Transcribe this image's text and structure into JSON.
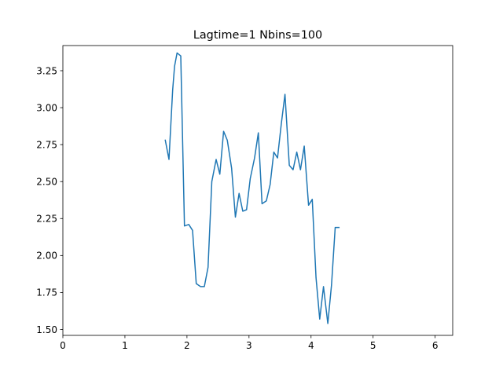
{
  "chart_data": {
    "type": "line",
    "title": "Lagtime=1 Nbins=100",
    "xlabel": "",
    "ylabel": "",
    "xlim": [
      0,
      6.2832
    ],
    "ylim": [
      1.46,
      3.42
    ],
    "x_ticks": [
      0,
      1,
      2,
      3,
      4,
      5,
      6
    ],
    "x_tick_labels": [
      "0",
      "1",
      "2",
      "3",
      "4",
      "5",
      "6"
    ],
    "y_ticks": [
      1.5,
      1.75,
      2.0,
      2.25,
      2.5,
      2.75,
      3.0,
      3.25
    ],
    "y_tick_labels": [
      "1.50",
      "1.75",
      "2.00",
      "2.25",
      "2.50",
      "2.75",
      "3.00",
      "3.25"
    ],
    "grid": false,
    "colors": {
      "series": "#1f77b4",
      "axes": "#000000",
      "background": "#ffffff"
    },
    "series": [
      {
        "x": [
          1.65,
          1.71,
          1.77,
          1.8,
          1.84,
          1.9,
          1.96,
          2.03,
          2.09,
          2.15,
          2.22,
          2.28,
          2.34,
          2.4,
          2.47,
          2.53,
          2.59,
          2.65,
          2.72,
          2.78,
          2.84,
          2.9,
          2.96,
          3.02,
          3.09,
          3.15,
          3.21,
          3.28,
          3.34,
          3.4,
          3.46,
          3.52,
          3.58,
          3.65,
          3.71,
          3.77,
          3.83,
          3.89,
          3.96,
          4.02,
          4.08,
          4.14,
          4.2,
          4.27,
          4.33,
          4.39,
          4.45
        ],
        "y": [
          2.78,
          2.65,
          3.12,
          3.28,
          3.37,
          3.35,
          2.2,
          2.21,
          2.17,
          1.81,
          1.79,
          1.79,
          1.92,
          2.5,
          2.65,
          2.55,
          2.84,
          2.78,
          2.59,
          2.26,
          2.42,
          2.3,
          2.31,
          2.52,
          2.66,
          2.83,
          2.35,
          2.37,
          2.48,
          2.7,
          2.66,
          2.89,
          3.09,
          2.61,
          2.58,
          2.7,
          2.58,
          2.74,
          2.34,
          2.38,
          1.85,
          1.57,
          1.79,
          1.54,
          1.8,
          2.19,
          2.19
        ]
      }
    ]
  }
}
